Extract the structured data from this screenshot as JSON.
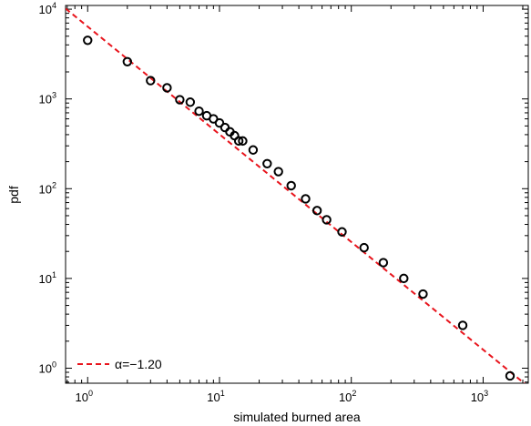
{
  "chart_data": {
    "type": "scatter",
    "title": "",
    "xlabel": "simulated burned area",
    "ylabel": "pdf",
    "xscale": "log",
    "yscale": "log",
    "xlim": [
      0.68,
      2200
    ],
    "ylim": [
      0.68,
      11000
    ],
    "grid": false,
    "legend_position": "bottom-left",
    "x_ticks": [
      {
        "base": "10",
        "exp": "0",
        "value": 1
      },
      {
        "base": "10",
        "exp": "1",
        "value": 10
      },
      {
        "base": "10",
        "exp": "2",
        "value": 100
      },
      {
        "base": "10",
        "exp": "3",
        "value": 1000
      }
    ],
    "y_ticks": [
      {
        "base": "10",
        "exp": "0",
        "value": 1
      },
      {
        "base": "10",
        "exp": "1",
        "value": 10
      },
      {
        "base": "10",
        "exp": "2",
        "value": 100
      },
      {
        "base": "10",
        "exp": "3",
        "value": 1000
      },
      {
        "base": "10",
        "exp": "4",
        "value": 10000
      }
    ],
    "points": {
      "marker": "open-circle",
      "color": "#000000",
      "x": [
        1,
        2,
        3,
        4,
        5,
        6,
        7,
        8,
        9,
        10,
        11,
        12,
        13,
        14,
        15,
        18,
        23,
        28,
        35,
        45,
        55,
        65,
        85,
        125,
        175,
        250,
        350,
        700,
        1600
      ],
      "y": [
        4500,
        2600,
        1600,
        1330,
        980,
        920,
        730,
        650,
        600,
        540,
        480,
        430,
        390,
        340,
        340,
        270,
        190,
        155,
        108,
        77,
        57,
        45,
        33,
        22,
        15,
        10,
        6.7,
        3.0,
        0.82
      ]
    },
    "fit_line": {
      "name": "α=−1.20",
      "style": "dashed",
      "color": "#e8141c",
      "alpha": -1.2,
      "x_range": [
        0.68,
        2200
      ],
      "y_at_x1": 6400
    }
  }
}
